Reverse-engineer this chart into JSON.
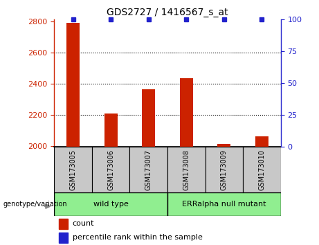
{
  "title": "GDS2727 / 1416567_s_at",
  "samples": [
    "GSM173005",
    "GSM173006",
    "GSM173007",
    "GSM173008",
    "GSM173009",
    "GSM173010"
  ],
  "counts": [
    2790,
    2210,
    2365,
    2435,
    2015,
    2065
  ],
  "percentile_ranks": [
    100,
    100,
    100,
    100,
    100,
    100
  ],
  "ylim_left": [
    1995,
    2810
  ],
  "ylim_right": [
    0,
    100
  ],
  "yticks_left": [
    2000,
    2200,
    2400,
    2600,
    2800
  ],
  "yticks_right": [
    0,
    25,
    50,
    75,
    100
  ],
  "bar_color": "#CC2200",
  "dot_color": "#2222CC",
  "background_color": "#FFFFFF",
  "bar_width": 0.35,
  "legend_count_label": "count",
  "legend_pct_label": "percentile rank within the sample",
  "group_label_prefix": "genotype/variation",
  "group1_label": "wild type",
  "group2_label": "ERRalpha null mutant",
  "group_color": "#90EE90",
  "sample_box_color": "#C8C8C8",
  "left_axis_color": "#CC2200",
  "right_axis_color": "#2222CC"
}
